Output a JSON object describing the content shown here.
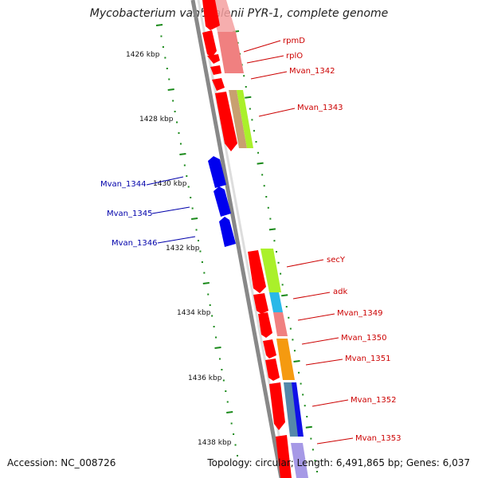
{
  "title": "Mycobacterium vanbaalenii PYR-1, complete genome",
  "accession": "Accession: NC_008726",
  "topology": "Topology: circular; Length: 6,491,865 bp; Genes: 6,037",
  "colors": {
    "backbone": "#888888",
    "ruler": "#1a8a1a",
    "forward_gene": "#ff0000",
    "reverse_gene": "#0000ff",
    "forward_label": "#cc0000",
    "reverse_label": "#0000aa"
  },
  "scale_labels": [
    {
      "kbp": 1426,
      "text": "1426 kbp"
    },
    {
      "kbp": 1428,
      "text": "1428 kbp"
    },
    {
      "kbp": 1430,
      "text": "1430 kbp"
    },
    {
      "kbp": 1432,
      "text": "1432 kbp"
    },
    {
      "kbp": 1434,
      "text": "1434 kbp"
    },
    {
      "kbp": 1436,
      "text": "1436 kbp"
    },
    {
      "kbp": 1438,
      "text": "1438 kbp"
    }
  ],
  "gene_labels_forward": [
    {
      "name": "rpmD"
    },
    {
      "name": "rplO"
    },
    {
      "name": "Mvan_1342"
    },
    {
      "name": "Mvan_1343"
    },
    {
      "name": "secY"
    },
    {
      "name": "adk"
    },
    {
      "name": "Mvan_1349"
    },
    {
      "name": "Mvan_1350"
    },
    {
      "name": "Mvan_1351"
    },
    {
      "name": "Mvan_1352"
    },
    {
      "name": "Mvan_1353"
    }
  ],
  "gene_labels_reverse": [
    {
      "name": "Mvan_1344"
    },
    {
      "name": "Mvan_1345"
    },
    {
      "name": "Mvan_1346"
    }
  ]
}
